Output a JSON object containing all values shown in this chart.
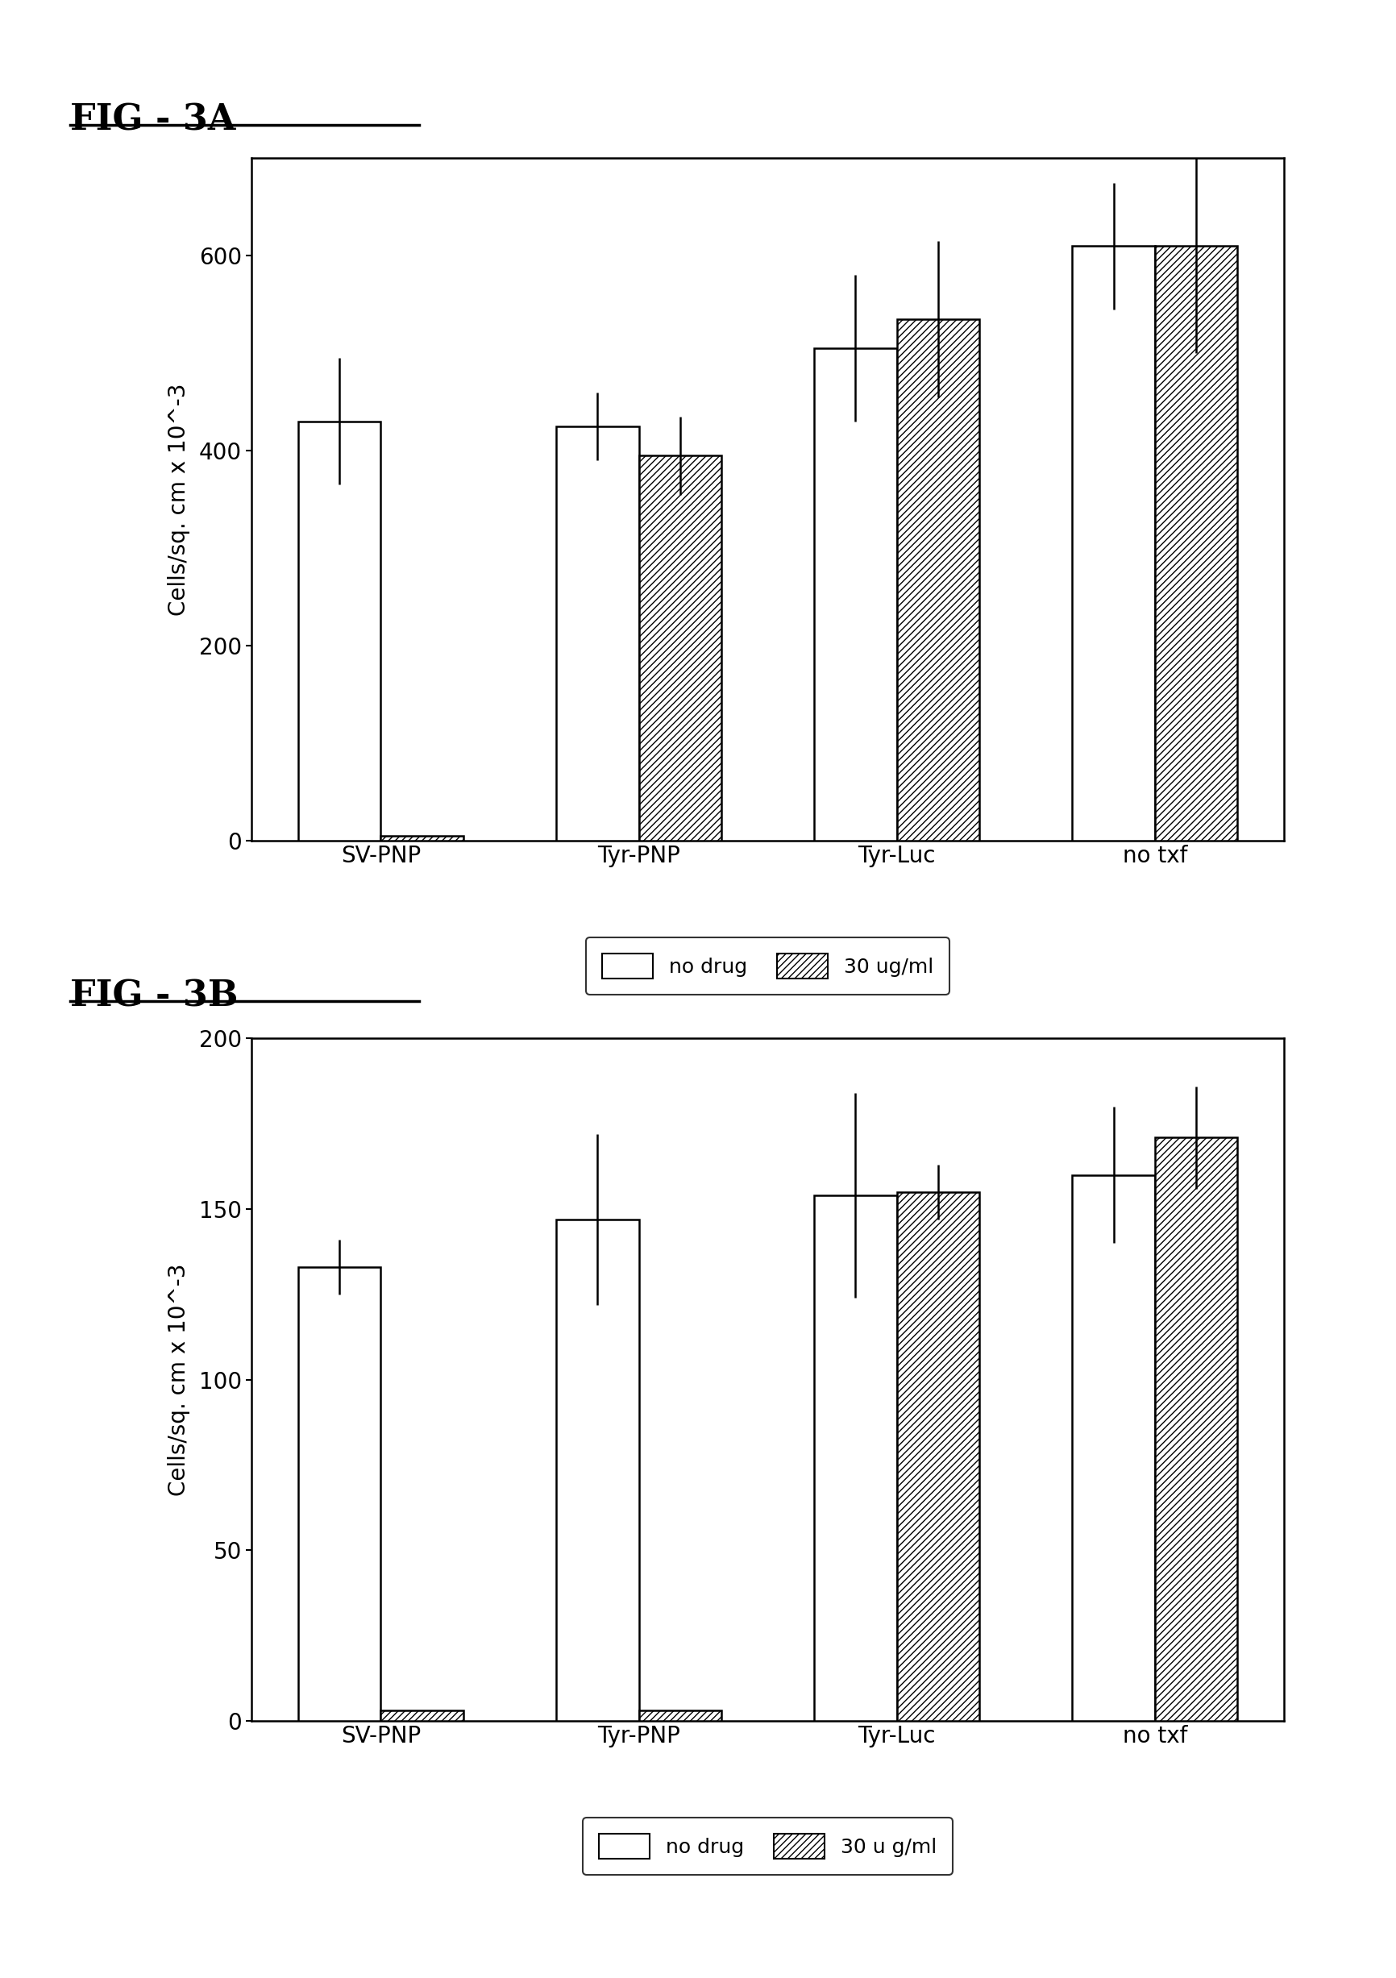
{
  "fig3a": {
    "title": "FIG - 3A",
    "ylabel": "Cells/sq. cm x 10^-3",
    "ylim": [
      0,
      700
    ],
    "yticks": [
      0,
      200,
      400,
      600
    ],
    "categories": [
      "SV-PNP",
      "Tyr-PNP",
      "Tyr-Luc",
      "no txf"
    ],
    "no_drug_values": [
      430,
      425,
      505,
      610
    ],
    "drug_values": [
      5,
      395,
      535,
      610
    ],
    "no_drug_errors": [
      65,
      35,
      75,
      65
    ],
    "drug_errors": [
      0,
      40,
      80,
      110
    ]
  },
  "fig3b": {
    "title": "FIG - 3B",
    "ylabel": "Cells/sq. cm x 10^-3",
    "ylim": [
      0,
      200
    ],
    "yticks": [
      0,
      50,
      100,
      150,
      200
    ],
    "categories": [
      "SV-PNP",
      "Tyr-PNP",
      "Tyr-Luc",
      "no txf"
    ],
    "no_drug_values": [
      133,
      147,
      154,
      160
    ],
    "drug_values": [
      3,
      3,
      155,
      171
    ],
    "no_drug_errors": [
      8,
      25,
      30,
      20
    ],
    "drug_errors": [
      0,
      0,
      8,
      15
    ]
  },
  "legend_a_nodrug": "no drug",
  "legend_a_drug": "30 ug/ml",
  "legend_b_nodrug": "no drug",
  "legend_b_drug": "30 u g/ml",
  "bar_width": 0.32,
  "hatch_pattern": "////",
  "background_color": "#ffffff",
  "bar_color_nodrug": "#ffffff",
  "bar_color_drug": "#ffffff",
  "bar_edgecolor": "#000000",
  "title_fontsize": 32,
  "axis_fontsize": 20,
  "tick_fontsize": 20,
  "legend_fontsize": 18
}
